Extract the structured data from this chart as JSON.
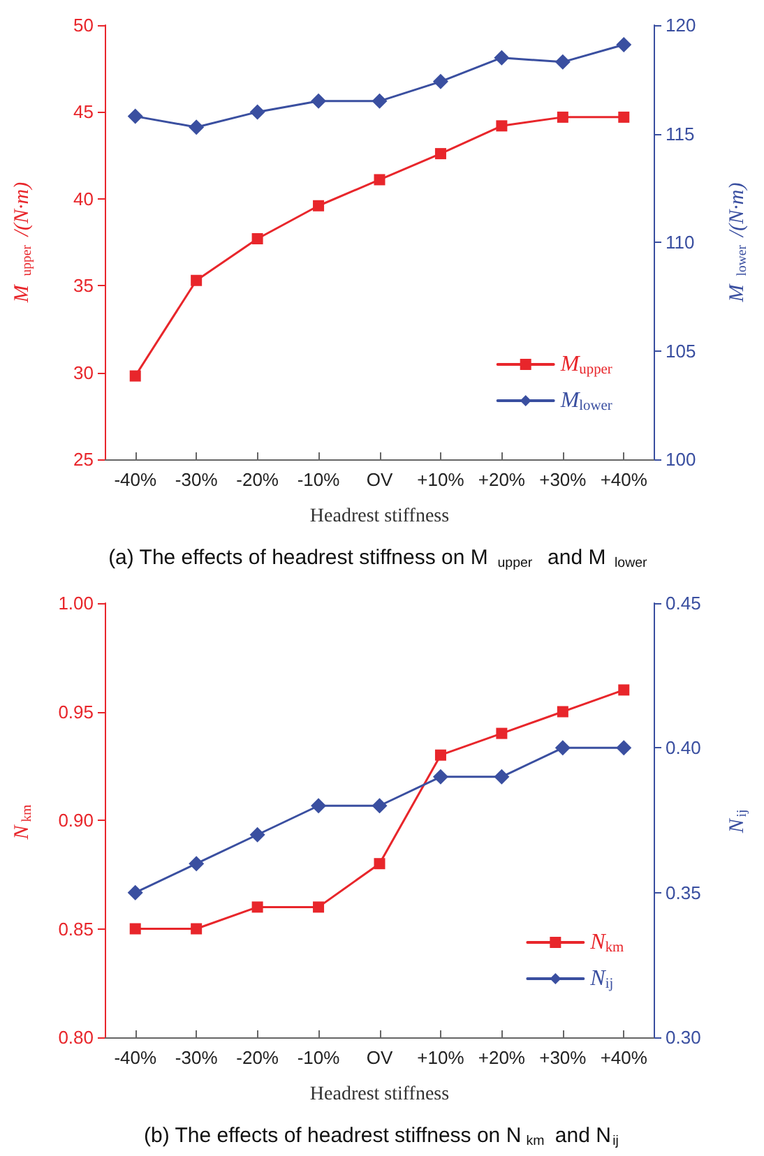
{
  "chart_data": [
    {
      "type": "line",
      "title": "(a) The effects of headrest stiffness on M$_{upper}$ and M$_{lower}$",
      "xlabel": "Headrest stiffness",
      "ylabel": "M$_{upper}$/(N·m)",
      "y2label": "M$_{lower}$/(N·m)",
      "categories": [
        "-40%",
        "-30%",
        "-20%",
        "-10%",
        "OV",
        "+10%",
        "+20%",
        "+30%",
        "+40%"
      ],
      "series": [
        {
          "name": "M$_{upper}$",
          "color": "#e8262b",
          "marker": "square",
          "values": [
            29.8,
            35.3,
            37.7,
            39.6,
            41.1,
            42.6,
            44.2,
            44.7,
            44.7
          ]
        },
        {
          "name": "M$_{lower}$",
          "color": "#3a4fa0",
          "marker": "diamond",
          "axis": "y2",
          "values": [
            115.8,
            115.3,
            116.0,
            116.5,
            116.5,
            117.4,
            118.5,
            118.3,
            119.1
          ]
        }
      ],
      "ylim": [
        25,
        50
      ],
      "yticks": [
        25,
        30,
        35,
        40,
        45,
        50
      ],
      "y2lim": [
        100,
        120
      ],
      "y2ticks": [
        100,
        105,
        110,
        115,
        120
      ],
      "grid": false,
      "legend": "bottom right"
    },
    {
      "type": "line",
      "title": "(b) The effects of headrest stiffness on N$_{km}$ and N$_{ij}$",
      "xlabel": "Headrest stiffness",
      "ylabel": "N$_{km}$",
      "y2label": "N$_{ij}$",
      "categories": [
        "-40%",
        "-30%",
        "-20%",
        "-10%",
        "OV",
        "+10%",
        "+20%",
        "+30%",
        "+40%"
      ],
      "series": [
        {
          "name": "N$_{km}$",
          "color": "#e8262b",
          "marker": "square",
          "values": [
            0.85,
            0.85,
            0.86,
            0.86,
            0.88,
            0.93,
            0.94,
            0.95,
            0.96
          ]
        },
        {
          "name": "N$_{ij}$",
          "color": "#3a4fa0",
          "marker": "diamond",
          "axis": "y2",
          "values": [
            0.35,
            0.36,
            0.37,
            0.38,
            0.38,
            0.39,
            0.39,
            0.4,
            0.4
          ]
        }
      ],
      "ylim": [
        0.8,
        1.0
      ],
      "yticks": [
        {
          "value": 0.8,
          "label": "0.80"
        },
        {
          "value": 0.85,
          "label": "0.85"
        },
        {
          "value": 0.9,
          "label": "0.90"
        },
        {
          "value": 0.95,
          "label": "0.95"
        },
        {
          "value": 1.0,
          "label": "1.00"
        }
      ],
      "y2lim": [
        0.3,
        0.45
      ],
      "y2ticks": [
        {
          "value": 0.3,
          "label": "0.30"
        },
        {
          "value": 0.35,
          "label": "0.35"
        },
        {
          "value": 0.4,
          "label": "0.40"
        },
        {
          "value": 0.45,
          "label": "0.45"
        }
      ],
      "grid": false,
      "legend": "bottom right"
    }
  ]
}
